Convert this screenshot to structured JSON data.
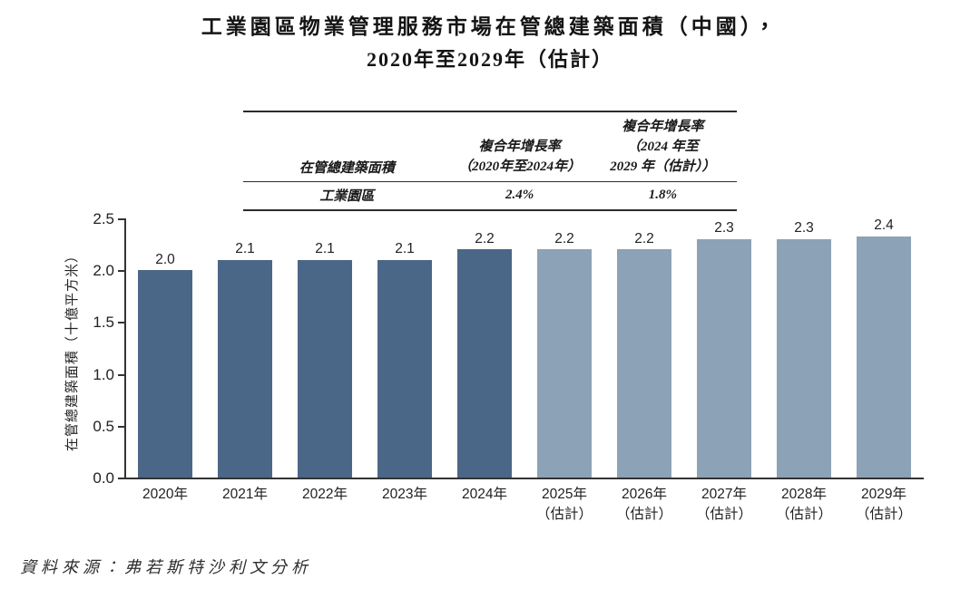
{
  "title": {
    "line1": "工業園區物業管理服務市場在管總建築面積（中國），",
    "line2": "2020年至2029年（估計）"
  },
  "cagr_table": {
    "col1_header": "在管總建築面積",
    "col2_header_line1": "複合年增長率",
    "col2_header_line2": "（2020年至2024年）",
    "col3_header_line1": "複合年增長率",
    "col3_header_line2": "（2024 年至",
    "col3_header_line3": "2029 年（估計））",
    "row_label": "工業園區",
    "cagr_2020_2024": "2.4%",
    "cagr_2024_2029": "1.8%"
  },
  "chart_data": {
    "type": "bar",
    "title": "工業園區物業管理服務市場在管總建築面積（中國），2020年至2029年（估計）",
    "xlabel": "",
    "ylabel": "在管總建築面積（十億平方米）",
    "ylim": [
      0,
      2.5
    ],
    "yticks": [
      0.0,
      0.5,
      1.0,
      1.5,
      2.0,
      2.5
    ],
    "ytick_labels": [
      "0.0",
      "0.5",
      "1.0",
      "1.5",
      "2.0",
      "2.5"
    ],
    "grid": false,
    "legend": "none",
    "categories": [
      {
        "year": "2020年",
        "note": ""
      },
      {
        "year": "2021年",
        "note": ""
      },
      {
        "year": "2022年",
        "note": ""
      },
      {
        "year": "2023年",
        "note": ""
      },
      {
        "year": "2024年",
        "note": ""
      },
      {
        "year": "2025年",
        "note": "（估計）"
      },
      {
        "year": "2026年",
        "note": "（估計）"
      },
      {
        "year": "2027年",
        "note": "（估計）"
      },
      {
        "year": "2028年",
        "note": "（估計）"
      },
      {
        "year": "2029年",
        "note": "（估計）"
      }
    ],
    "values": [
      2.0,
      2.1,
      2.1,
      2.1,
      2.2,
      2.2,
      2.2,
      2.3,
      2.3,
      2.4
    ],
    "value_labels": [
      "2.0",
      "2.1",
      "2.1",
      "2.1",
      "2.2",
      "2.2",
      "2.2",
      "2.3",
      "2.3",
      "2.4"
    ],
    "bar_colors": {
      "historical": "#4b6787",
      "estimated": "#8ca2b7"
    },
    "estimated_start_index": 5
  },
  "source": "資料來源：弗若斯特沙利文分析"
}
